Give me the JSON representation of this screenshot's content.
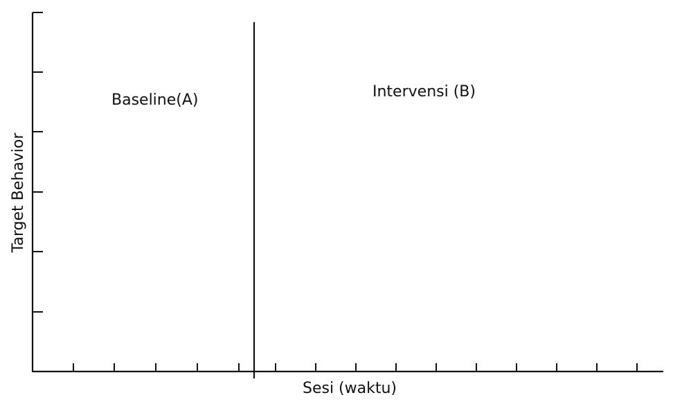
{
  "chart_data": {
    "type": "line",
    "title": "",
    "xlabel": "Sesi (waktu)",
    "ylabel": "Target Behavior",
    "phases": [
      {
        "label": "Baseline(A)"
      },
      {
        "label": "Intervensi (B)"
      }
    ],
    "series": [],
    "colors": {
      "axis": "#111111",
      "background": "#ffffff"
    },
    "grid": false,
    "legend": "none"
  }
}
